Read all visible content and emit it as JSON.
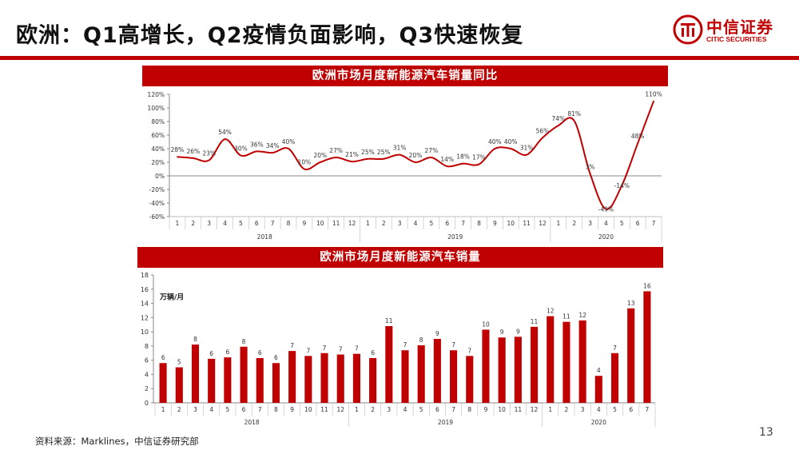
{
  "slide": {
    "title": "欧洲：Q1高增长，Q2疫情负面影响，Q3快速恢复",
    "source": "资料来源：Marklines，中信证券研究部",
    "page_number": "13"
  },
  "logo": {
    "name_cn": "中信证券",
    "name_en": "CITIC SECURITIES",
    "color": "#c00000"
  },
  "colors": {
    "accent": "#c00000",
    "line": "#c00000",
    "bar": "#c00000"
  },
  "chart_data": [
    {
      "type": "line",
      "title": "欧洲市场月度新能源汽车销量同比",
      "categories": [
        "1",
        "2",
        "3",
        "4",
        "5",
        "6",
        "7",
        "8",
        "9",
        "10",
        "11",
        "12",
        "1",
        "2",
        "3",
        "4",
        "5",
        "6",
        "7",
        "8",
        "9",
        "10",
        "11",
        "12",
        "1",
        "2",
        "3",
        "4",
        "5",
        "6",
        "7"
      ],
      "year_groups": [
        {
          "label": "2018",
          "count": 12
        },
        {
          "label": "2019",
          "count": 12
        },
        {
          "label": "2020",
          "count": 7
        }
      ],
      "values": [
        28,
        26,
        23,
        54,
        30,
        36,
        34,
        40,
        10,
        20,
        27,
        21,
        25,
        25,
        31,
        20,
        27,
        14,
        18,
        17,
        40,
        40,
        31,
        56,
        74,
        81,
        3,
        -49,
        -14,
        48,
        110
      ],
      "labels": [
        "28%",
        "26%",
        "23%",
        "54%",
        "30%",
        "36%",
        "34%",
        "40%",
        "10%",
        "20%",
        "27%",
        "21%",
        "25%",
        "25%",
        "31%",
        "20%",
        "27%",
        "14%",
        "18%",
        "17%",
        "40%",
        "40%",
        "31%",
        "56%",
        "74%",
        "81%",
        "3%",
        "-49%",
        "-14%",
        "48%",
        "110%"
      ],
      "ylim": [
        -60,
        120
      ],
      "yticks": [
        "-60%",
        "-40%",
        "-20%",
        "0%",
        "20%",
        "40%",
        "60%",
        "80%",
        "100%",
        "120%"
      ],
      "ytick_values": [
        -60,
        -40,
        -20,
        0,
        20,
        40,
        60,
        80,
        100,
        120
      ],
      "xlabel": "",
      "ylabel": "",
      "grid": false
    },
    {
      "type": "bar",
      "title": "欧洲市场月度新能源汽车销量",
      "unit": "万辆/月",
      "categories": [
        "1",
        "2",
        "3",
        "4",
        "5",
        "6",
        "7",
        "8",
        "9",
        "10",
        "11",
        "12",
        "1",
        "2",
        "3",
        "4",
        "5",
        "6",
        "7",
        "8",
        "9",
        "10",
        "11",
        "12",
        "1",
        "2",
        "3",
        "4",
        "5",
        "6",
        "7"
      ],
      "year_groups": [
        {
          "label": "2018",
          "count": 12
        },
        {
          "label": "2019",
          "count": 12
        },
        {
          "label": "2020",
          "count": 7
        }
      ],
      "values": [
        5.6,
        5.0,
        8.2,
        6.2,
        6.4,
        7.9,
        6.3,
        5.6,
        7.3,
        6.6,
        7.0,
        6.8,
        6.9,
        6.3,
        10.8,
        7.4,
        8.1,
        9.0,
        7.4,
        6.6,
        10.3,
        9.2,
        9.3,
        10.7,
        12.2,
        11.4,
        11.6,
        3.8,
        7.0,
        13.3,
        15.7
      ],
      "labels": [
        "6",
        "5",
        "8",
        "6",
        "6",
        "8",
        "6",
        "6",
        "7",
        "7",
        "7",
        "7",
        "7",
        "6",
        "11",
        "7",
        "8",
        "9",
        "7",
        "7",
        "10",
        "9",
        "9",
        "11",
        "12",
        "11",
        "12",
        "4",
        "7",
        "13",
        "16"
      ],
      "ylim": [
        0,
        18
      ],
      "yticks": [
        "0",
        "2",
        "4",
        "6",
        "8",
        "10",
        "12",
        "14",
        "16",
        "18"
      ],
      "ytick_values": [
        0,
        2,
        4,
        6,
        8,
        10,
        12,
        14,
        16,
        18
      ],
      "xlabel": "",
      "ylabel": "",
      "grid": false
    }
  ]
}
